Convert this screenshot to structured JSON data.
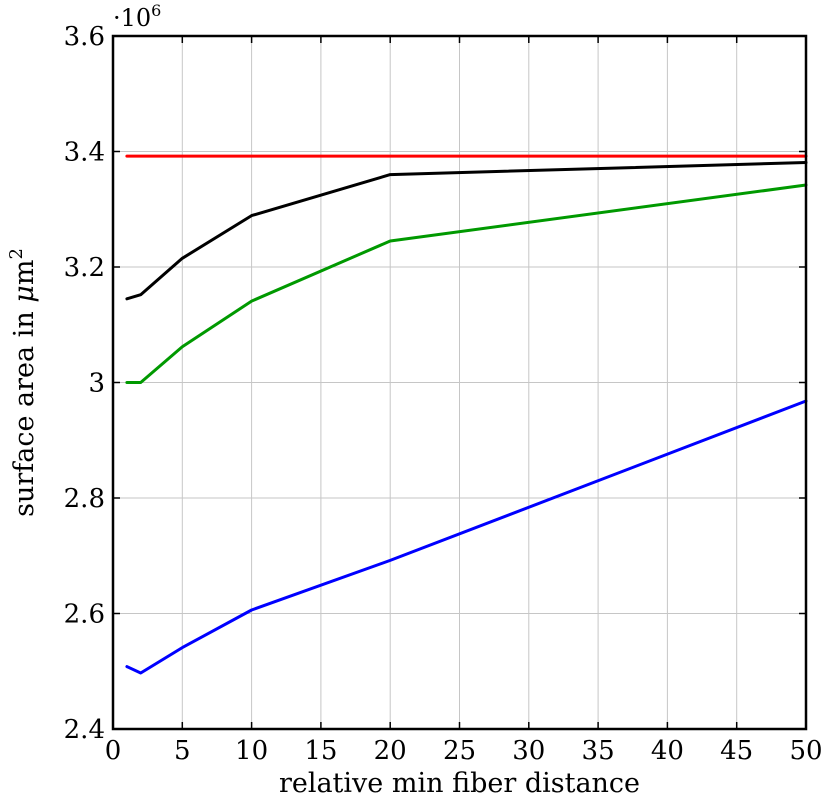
{
  "chart_data": {
    "type": "line",
    "xlabel": "relative min fiber distance",
    "ylabel": {
      "prefix": "surface area in ",
      "mu": "μ",
      "unit": "m",
      "sup": "2"
    },
    "multiplier": {
      "base": "·10",
      "exp": "6"
    },
    "xlim": [
      0,
      50
    ],
    "ylim": [
      2.4,
      3.6
    ],
    "x_ticks": [
      0,
      5,
      10,
      15,
      20,
      25,
      30,
      35,
      40,
      45,
      50
    ],
    "x_tick_labels": [
      "0",
      "5",
      "10",
      "15",
      "20",
      "25",
      "30",
      "35",
      "40",
      "45",
      "50"
    ],
    "y_ticks": [
      2.4,
      2.6,
      2.8,
      3.0,
      3.2,
      3.4,
      3.6
    ],
    "y_tick_labels": [
      "2.4",
      "2.6",
      "2.8",
      "3",
      "3.2",
      "3.4",
      "3.6"
    ],
    "grid": true,
    "series": [
      {
        "color": "#ff0000",
        "x": [
          1,
          2,
          5,
          10,
          20,
          50
        ],
        "y": [
          3.392,
          3.392,
          3.392,
          3.392,
          3.392,
          3.392
        ]
      },
      {
        "color": "#000000",
        "x": [
          1,
          2,
          5,
          10,
          20,
          50
        ],
        "y": [
          3.145,
          3.152,
          3.215,
          3.289,
          3.36,
          3.381
        ]
      },
      {
        "color": "#009900",
        "x": [
          1,
          2,
          5,
          10,
          20,
          50
        ],
        "y": [
          3.0,
          3.0,
          3.062,
          3.141,
          3.245,
          3.342
        ]
      },
      {
        "color": "#0000ff",
        "x": [
          1,
          2,
          5,
          10,
          20,
          50
        ],
        "y": [
          2.508,
          2.497,
          2.541,
          2.606,
          2.692,
          2.968
        ]
      }
    ]
  }
}
